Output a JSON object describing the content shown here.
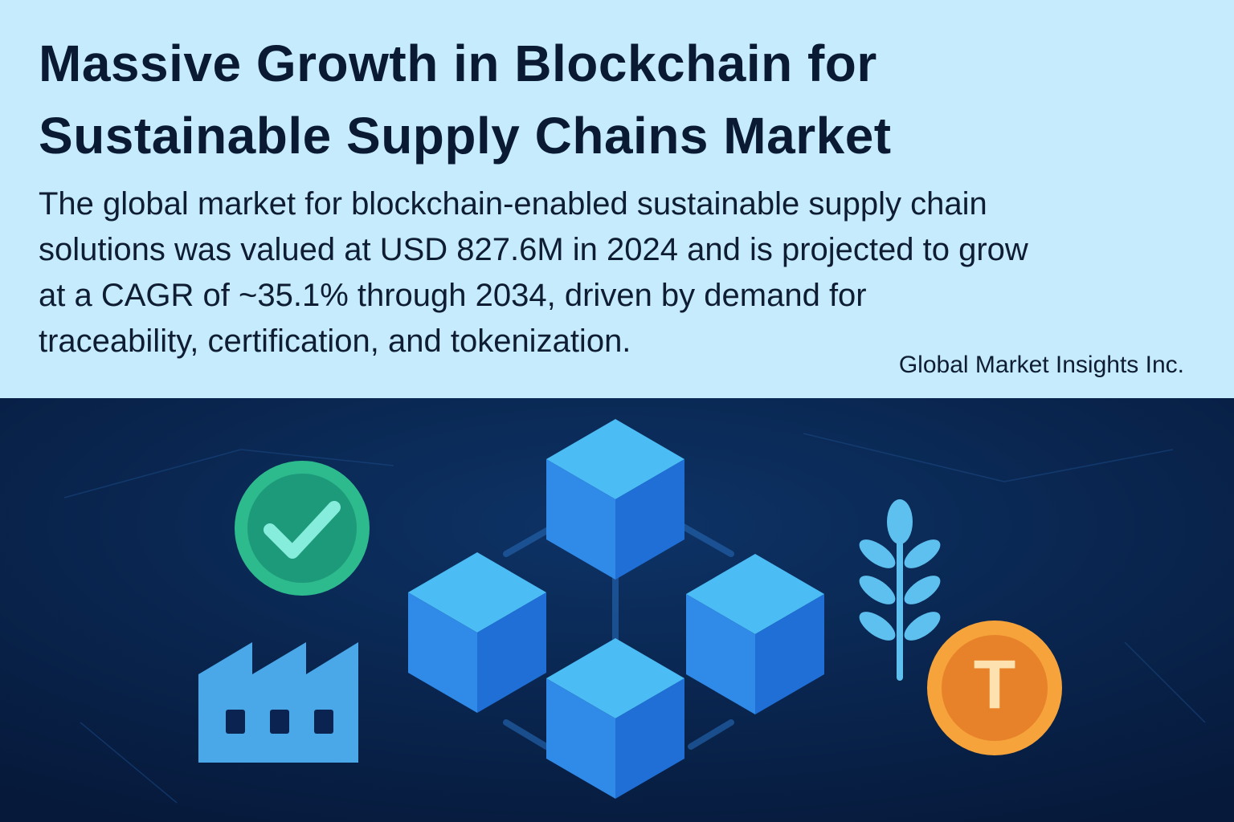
{
  "header": {
    "title_lines": [
      "Massive Growth in Blockchain for",
      "Sustainable Supply Chains Market"
    ],
    "body_lines": [
      "The global market for blockchain-enabled sustainable supply chain",
      "solutions was valued at USD 827.6M in 2024 and is projected to grow",
      "at a CAGR of ~35.1% through 2034, driven by demand for",
      "traceability, certification, and tokenization."
    ],
    "source": "Global Market Insights Inc."
  },
  "illustration": {
    "token_label": "T"
  }
}
